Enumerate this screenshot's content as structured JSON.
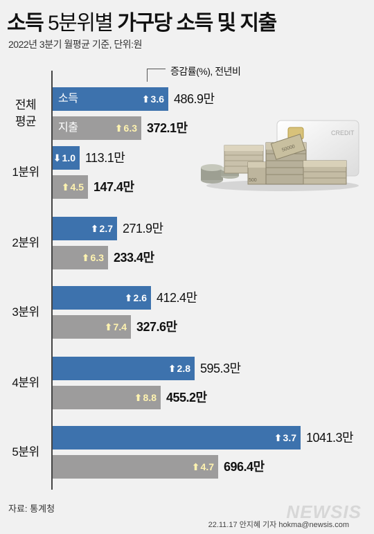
{
  "header": {
    "title_bold_1": "소득",
    "title_light": "5분위별",
    "title_bold_2": "가구당 소득 및 지출",
    "subtitle": "2022년 3분기 월평균 기준, 단위:원"
  },
  "legend_note": "증감률(%), 전년비",
  "series_labels": {
    "income": "소득",
    "expense": "지출"
  },
  "chart_data": {
    "type": "bar",
    "orientation": "horizontal",
    "title": "소득 5분위별 가구당 소득 및 지출",
    "subtitle": "2022년 3분기 월평균 기준, 단위:원",
    "unit": "만원",
    "categories": [
      "전체 평균",
      "1분위",
      "2분위",
      "3분위",
      "4분위",
      "5분위"
    ],
    "series": [
      {
        "name": "소득",
        "values": [
          486.9,
          113.1,
          271.9,
          412.4,
          595.3,
          1041.3
        ],
        "labels": [
          "486.9만",
          "113.1만",
          "271.9만",
          "412.4만",
          "595.3만",
          "1041.3만"
        ],
        "yoy_change": [
          3.6,
          -1.0,
          2.7,
          2.6,
          2.8,
          3.7
        ],
        "yoy_labels": [
          "3.6",
          "1.0",
          "2.7",
          "2.6",
          "2.8",
          "3.7"
        ],
        "color": "#3d72ad"
      },
      {
        "name": "지출",
        "values": [
          372.1,
          147.4,
          233.4,
          327.6,
          455.2,
          696.4
        ],
        "labels": [
          "372.1만",
          "147.4만",
          "233.4만",
          "327.6만",
          "455.2만",
          "696.4만"
        ],
        "yoy_change": [
          6.3,
          4.5,
          6.3,
          7.4,
          8.8,
          4.7
        ],
        "yoy_labels": [
          "6.3",
          "4.5",
          "6.3",
          "7.4",
          "8.8",
          "4.7"
        ],
        "color": "#9d9c9c"
      }
    ],
    "xlim": [
      0,
      1041.3
    ],
    "legend_note": "증감률(%), 전년비"
  },
  "footer": {
    "source": "자료: 통계청",
    "credit": "22.11.17 안지혜 기자 hokma@newsis.com",
    "logo": "NEWSIS"
  },
  "illustration": {
    "card_text": "CREDIT",
    "note_text_1": "50000",
    "note_text_2": "500"
  }
}
